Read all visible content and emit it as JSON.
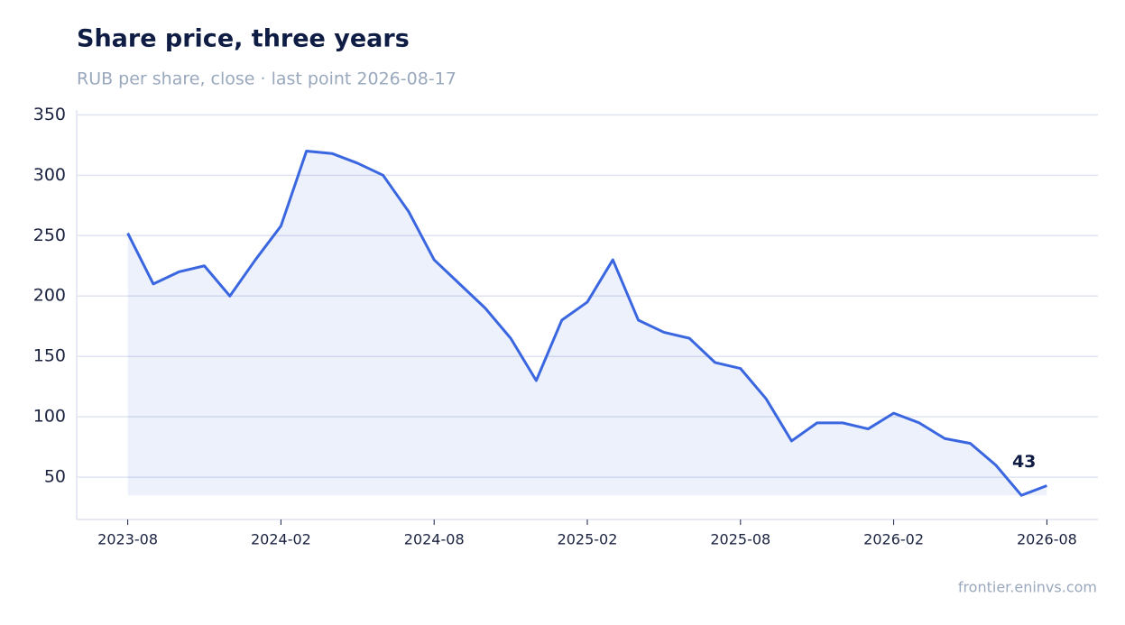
{
  "chart_data": {
    "type": "line",
    "title": "Share price, three years",
    "subtitle": "RUB per share, close · last point 2026-08-17",
    "source": "frontier.eninvs.com",
    "x": [
      "2023-08",
      "2023-09",
      "2023-10",
      "2023-11",
      "2023-12",
      "2024-01",
      "2024-02",
      "2024-03",
      "2024-04",
      "2024-05",
      "2024-06",
      "2024-07",
      "2024-08",
      "2024-09",
      "2024-10",
      "2024-11",
      "2024-12",
      "2025-01",
      "2025-02",
      "2025-03",
      "2025-04",
      "2025-05",
      "2025-06",
      "2025-07",
      "2025-08",
      "2025-09",
      "2025-10",
      "2025-11",
      "2025-12",
      "2026-01",
      "2026-02",
      "2026-03",
      "2026-04",
      "2026-05",
      "2026-06",
      "2026-07",
      "2026-08"
    ],
    "series": [
      {
        "name": "Close",
        "color": "#3a66e0",
        "values": [
          252,
          210,
          220,
          225,
          200,
          230,
          258,
          320,
          318,
          310,
          300,
          270,
          230,
          210,
          190,
          165,
          130,
          180,
          195,
          230,
          180,
          170,
          165,
          145,
          140,
          115,
          80,
          95,
          95,
          90,
          103,
          95,
          82,
          78,
          60,
          35,
          43
        ]
      }
    ],
    "ylim": [
      15,
      354
    ],
    "yticks": [
      50,
      100,
      150,
      200,
      250,
      300,
      350
    ],
    "xlim": [
      "2023-06",
      "2026-10"
    ],
    "xticks": [
      "2023-08",
      "2024-02",
      "2024-08",
      "2025-02",
      "2025-08",
      "2026-02",
      "2026-08"
    ],
    "grid": true,
    "fill": true
  }
}
